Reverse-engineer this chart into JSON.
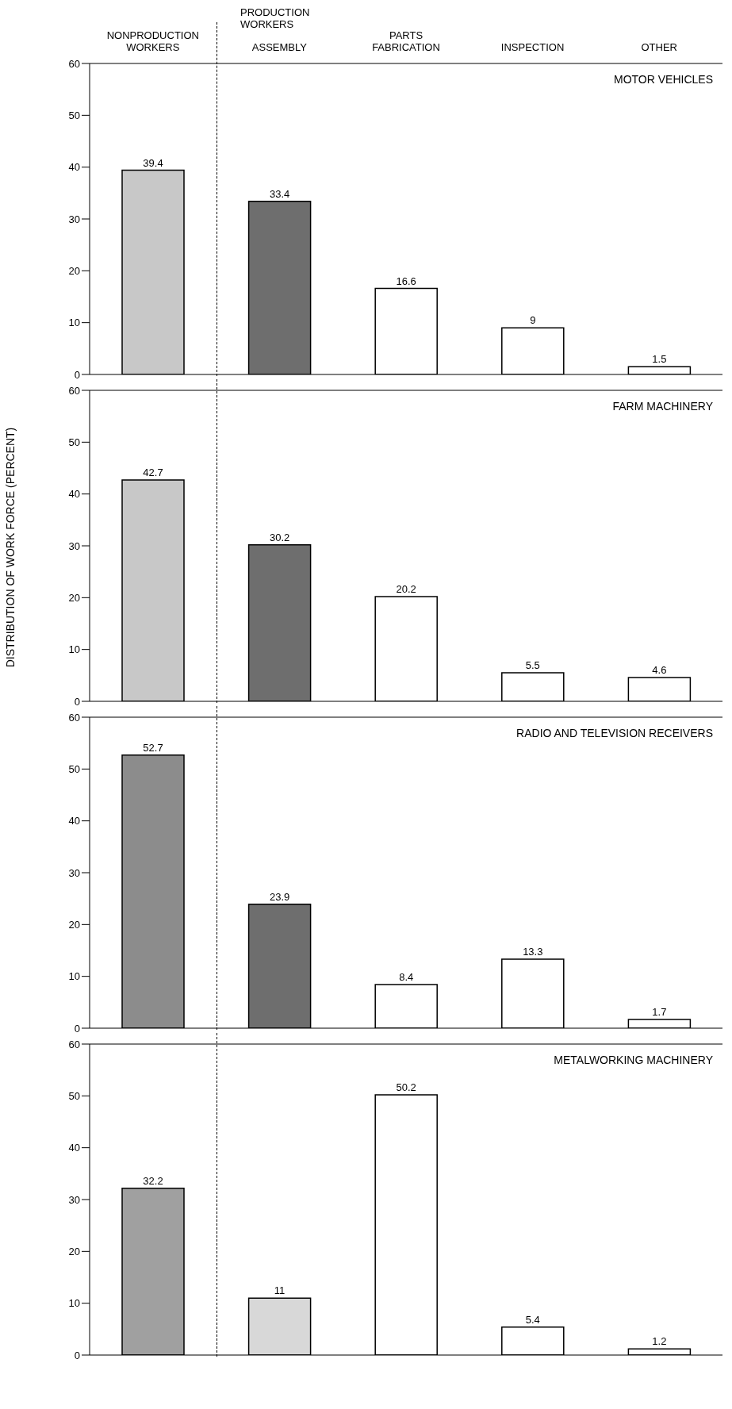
{
  "chart_data": [
    {
      "type": "bar",
      "title": "MOTOR VEHICLES",
      "categories": [
        "NONPRODUCTION WORKERS",
        "ASSEMBLY",
        "PARTS FABRICATION",
        "INSPECTION",
        "OTHER"
      ],
      "values": [
        39.4,
        33.4,
        16.6,
        9,
        1.5
      ],
      "colors": [
        "#c8c8c8",
        "#6e6e6e",
        "#ffffff",
        "#ffffff",
        "#ffffff"
      ],
      "ylim": [
        0,
        60
      ],
      "yticks": [
        0,
        10,
        20,
        30,
        40,
        50,
        60
      ],
      "data_labels": true,
      "grid": false,
      "annotations": [
        "PRODUCTION WORKERS"
      ]
    },
    {
      "type": "bar",
      "title": "FARM MACHINERY",
      "ylabel": "DISTRIBUTION OF WORK FORCE (PERCENT)",
      "categories": [
        null,
        null,
        null,
        null,
        null
      ],
      "values": [
        42.7,
        30.2,
        20.2,
        5.5,
        4.6
      ],
      "colors": [
        "#c8c8c8",
        "#6e6e6e",
        "#ffffff",
        "#ffffff",
        "#ffffff"
      ],
      "ylim": [
        0,
        60
      ],
      "yticks": [
        0,
        10,
        20,
        30,
        40,
        50,
        60
      ],
      "data_labels": true,
      "grid": false,
      "tick_labels": "y"
    },
    {
      "type": "bar",
      "title": "RADIO AND TELEVISION RECEIVERS",
      "categories": [
        null,
        null,
        null,
        null,
        null
      ],
      "values": [
        52.7,
        23.9,
        8.4,
        13.3,
        1.7
      ],
      "colors": [
        "#8c8c8c",
        "#6e6e6e",
        "#ffffff",
        "#ffffff",
        "#ffffff"
      ],
      "ylim": [
        0,
        60
      ],
      "yticks": [
        0,
        10,
        20,
        30,
        40,
        50,
        60
      ],
      "data_labels": true,
      "grid": false,
      "tick_labels": "y"
    },
    {
      "type": "bar",
      "title": "METALWORKING MACHINERY",
      "categories": [
        null,
        null,
        null,
        null,
        null
      ],
      "values": [
        32.2,
        11,
        50.2,
        5.4,
        1.2
      ],
      "colors": [
        "#a0a0a0",
        "#d8d8d8",
        "#ffffff",
        "#ffffff",
        "#ffffff"
      ],
      "ylim": [
        0,
        60
      ],
      "yticks": [
        0,
        10,
        20,
        30,
        40,
        50,
        60
      ],
      "data_labels": true,
      "grid": false,
      "tick_labels": "y"
    }
  ]
}
